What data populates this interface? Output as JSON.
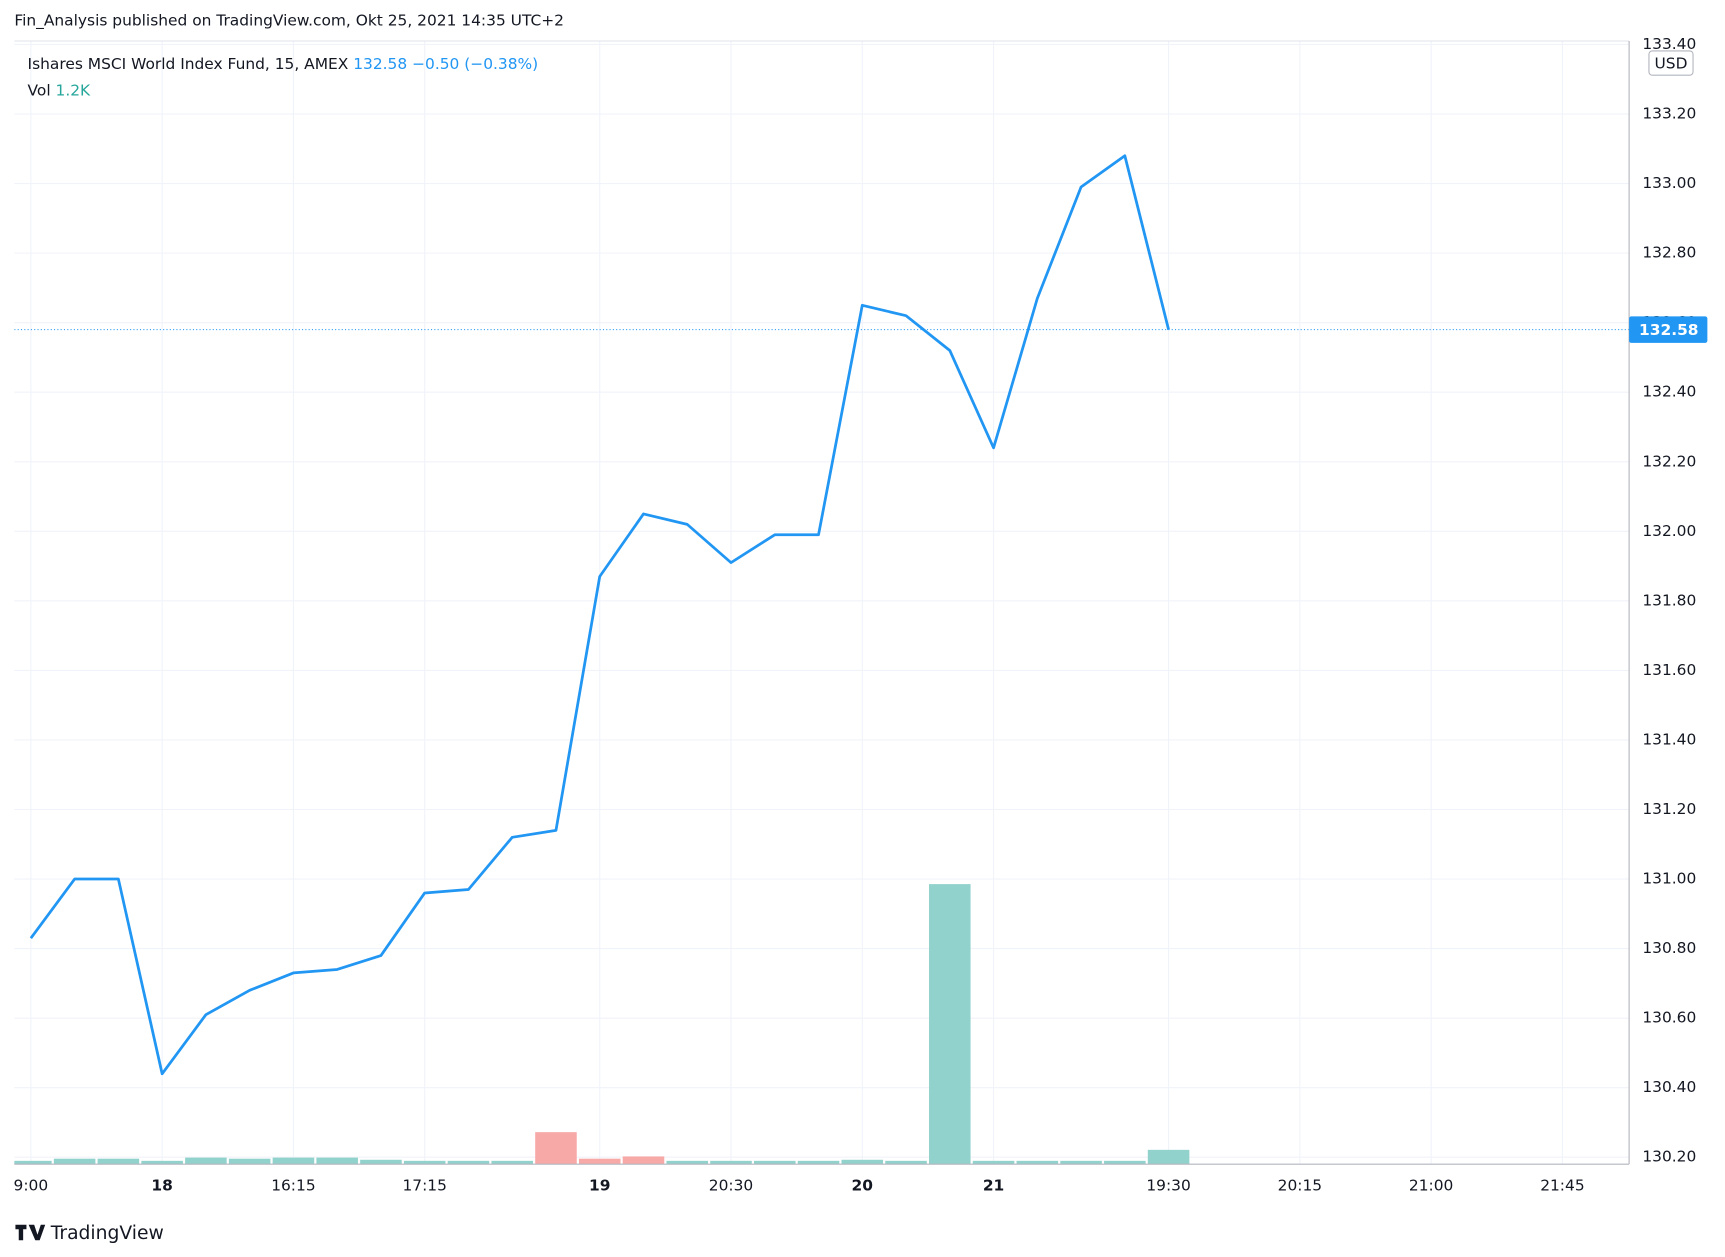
{
  "header": {
    "published": "Fin_Analysis published on TradingView.com, Okt 25, 2021 14:35 UTC+2",
    "logo": "TradingView"
  },
  "chart_data": {
    "type": "line",
    "title": "Ishares MSCI World Index Fund, 15, AMEX",
    "last_price": 132.58,
    "change": "−0.50 (−0.38%)",
    "currency": "USD",
    "color": "#2196f3",
    "grid": true,
    "categories": [
      "9:00",
      null,
      null,
      "18",
      null,
      null,
      "16:15",
      null,
      null,
      "17:15",
      null,
      null,
      null,
      "19",
      null,
      null,
      "20:30",
      null,
      null,
      "20",
      null,
      null,
      "21",
      null,
      null,
      null,
      "19:30",
      null,
      null,
      "20:15",
      null,
      null,
      "21:00",
      null,
      null,
      "21:45",
      null
    ],
    "values": [
      130.83,
      131.0,
      131.0,
      130.44,
      130.61,
      130.68,
      130.73,
      130.74,
      130.78,
      130.96,
      130.97,
      131.12,
      131.14,
      131.87,
      132.05,
      132.02,
      131.91,
      131.99,
      131.99,
      132.65,
      132.62,
      132.52,
      132.24,
      132.67,
      132.99,
      133.08,
      132.58,
      null,
      null,
      null,
      null,
      null,
      null,
      null,
      null,
      null,
      null
    ],
    "ylim": [
      130.18,
      133.41
    ],
    "yticks": [
      {
        "value": 130.2,
        "label": "130.20"
      },
      {
        "value": 130.4,
        "label": "130.40"
      },
      {
        "value": 130.6,
        "label": "130.60"
      },
      {
        "value": 130.8,
        "label": "130.80"
      },
      {
        "value": 131.0,
        "label": "131.00"
      },
      {
        "value": 131.2,
        "label": "131.20"
      },
      {
        "value": 131.4,
        "label": "131.40"
      },
      {
        "value": 131.6,
        "label": "131.60"
      },
      {
        "value": 131.8,
        "label": "131.80"
      },
      {
        "value": 132.0,
        "label": "132.00"
      },
      {
        "value": 132.2,
        "label": "132.20"
      },
      {
        "value": 132.4,
        "label": "132.40"
      },
      {
        "value": 132.6,
        "label": "132.60"
      },
      {
        "value": 132.8,
        "label": "132.80"
      },
      {
        "value": 133.0,
        "label": "133.00"
      },
      {
        "value": 133.2,
        "label": "133.20"
      },
      {
        "value": 133.4,
        "label": "133.40"
      }
    ],
    "volume": {
      "name": "Vol",
      "last_value_label": "1.2K",
      "y2lim": [
        0,
        94000
      ],
      "values": [
        280,
        460,
        460,
        280,
        550,
        460,
        550,
        550,
        370,
        280,
        280,
        280,
        2680,
        460,
        650,
        280,
        280,
        280,
        280,
        370,
        280,
        23440,
        280,
        280,
        280,
        280,
        1200
      ],
      "colors": [
        "#92d2cc",
        "#92d2cc",
        "#92d2cc",
        "#92d2cc",
        "#92d2cc",
        "#92d2cc",
        "#92d2cc",
        "#92d2cc",
        "#92d2cc",
        "#92d2cc",
        "#92d2cc",
        "#92d2cc",
        "#f7a9a7",
        "#f7a9a7",
        "#f7a9a7",
        "#92d2cc",
        "#92d2cc",
        "#92d2cc",
        "#92d2cc",
        "#92d2cc",
        "#92d2cc",
        "#92d2cc",
        "#92d2cc",
        "#92d2cc",
        "#92d2cc",
        "#92d2cc",
        "#92d2cc"
      ]
    }
  }
}
